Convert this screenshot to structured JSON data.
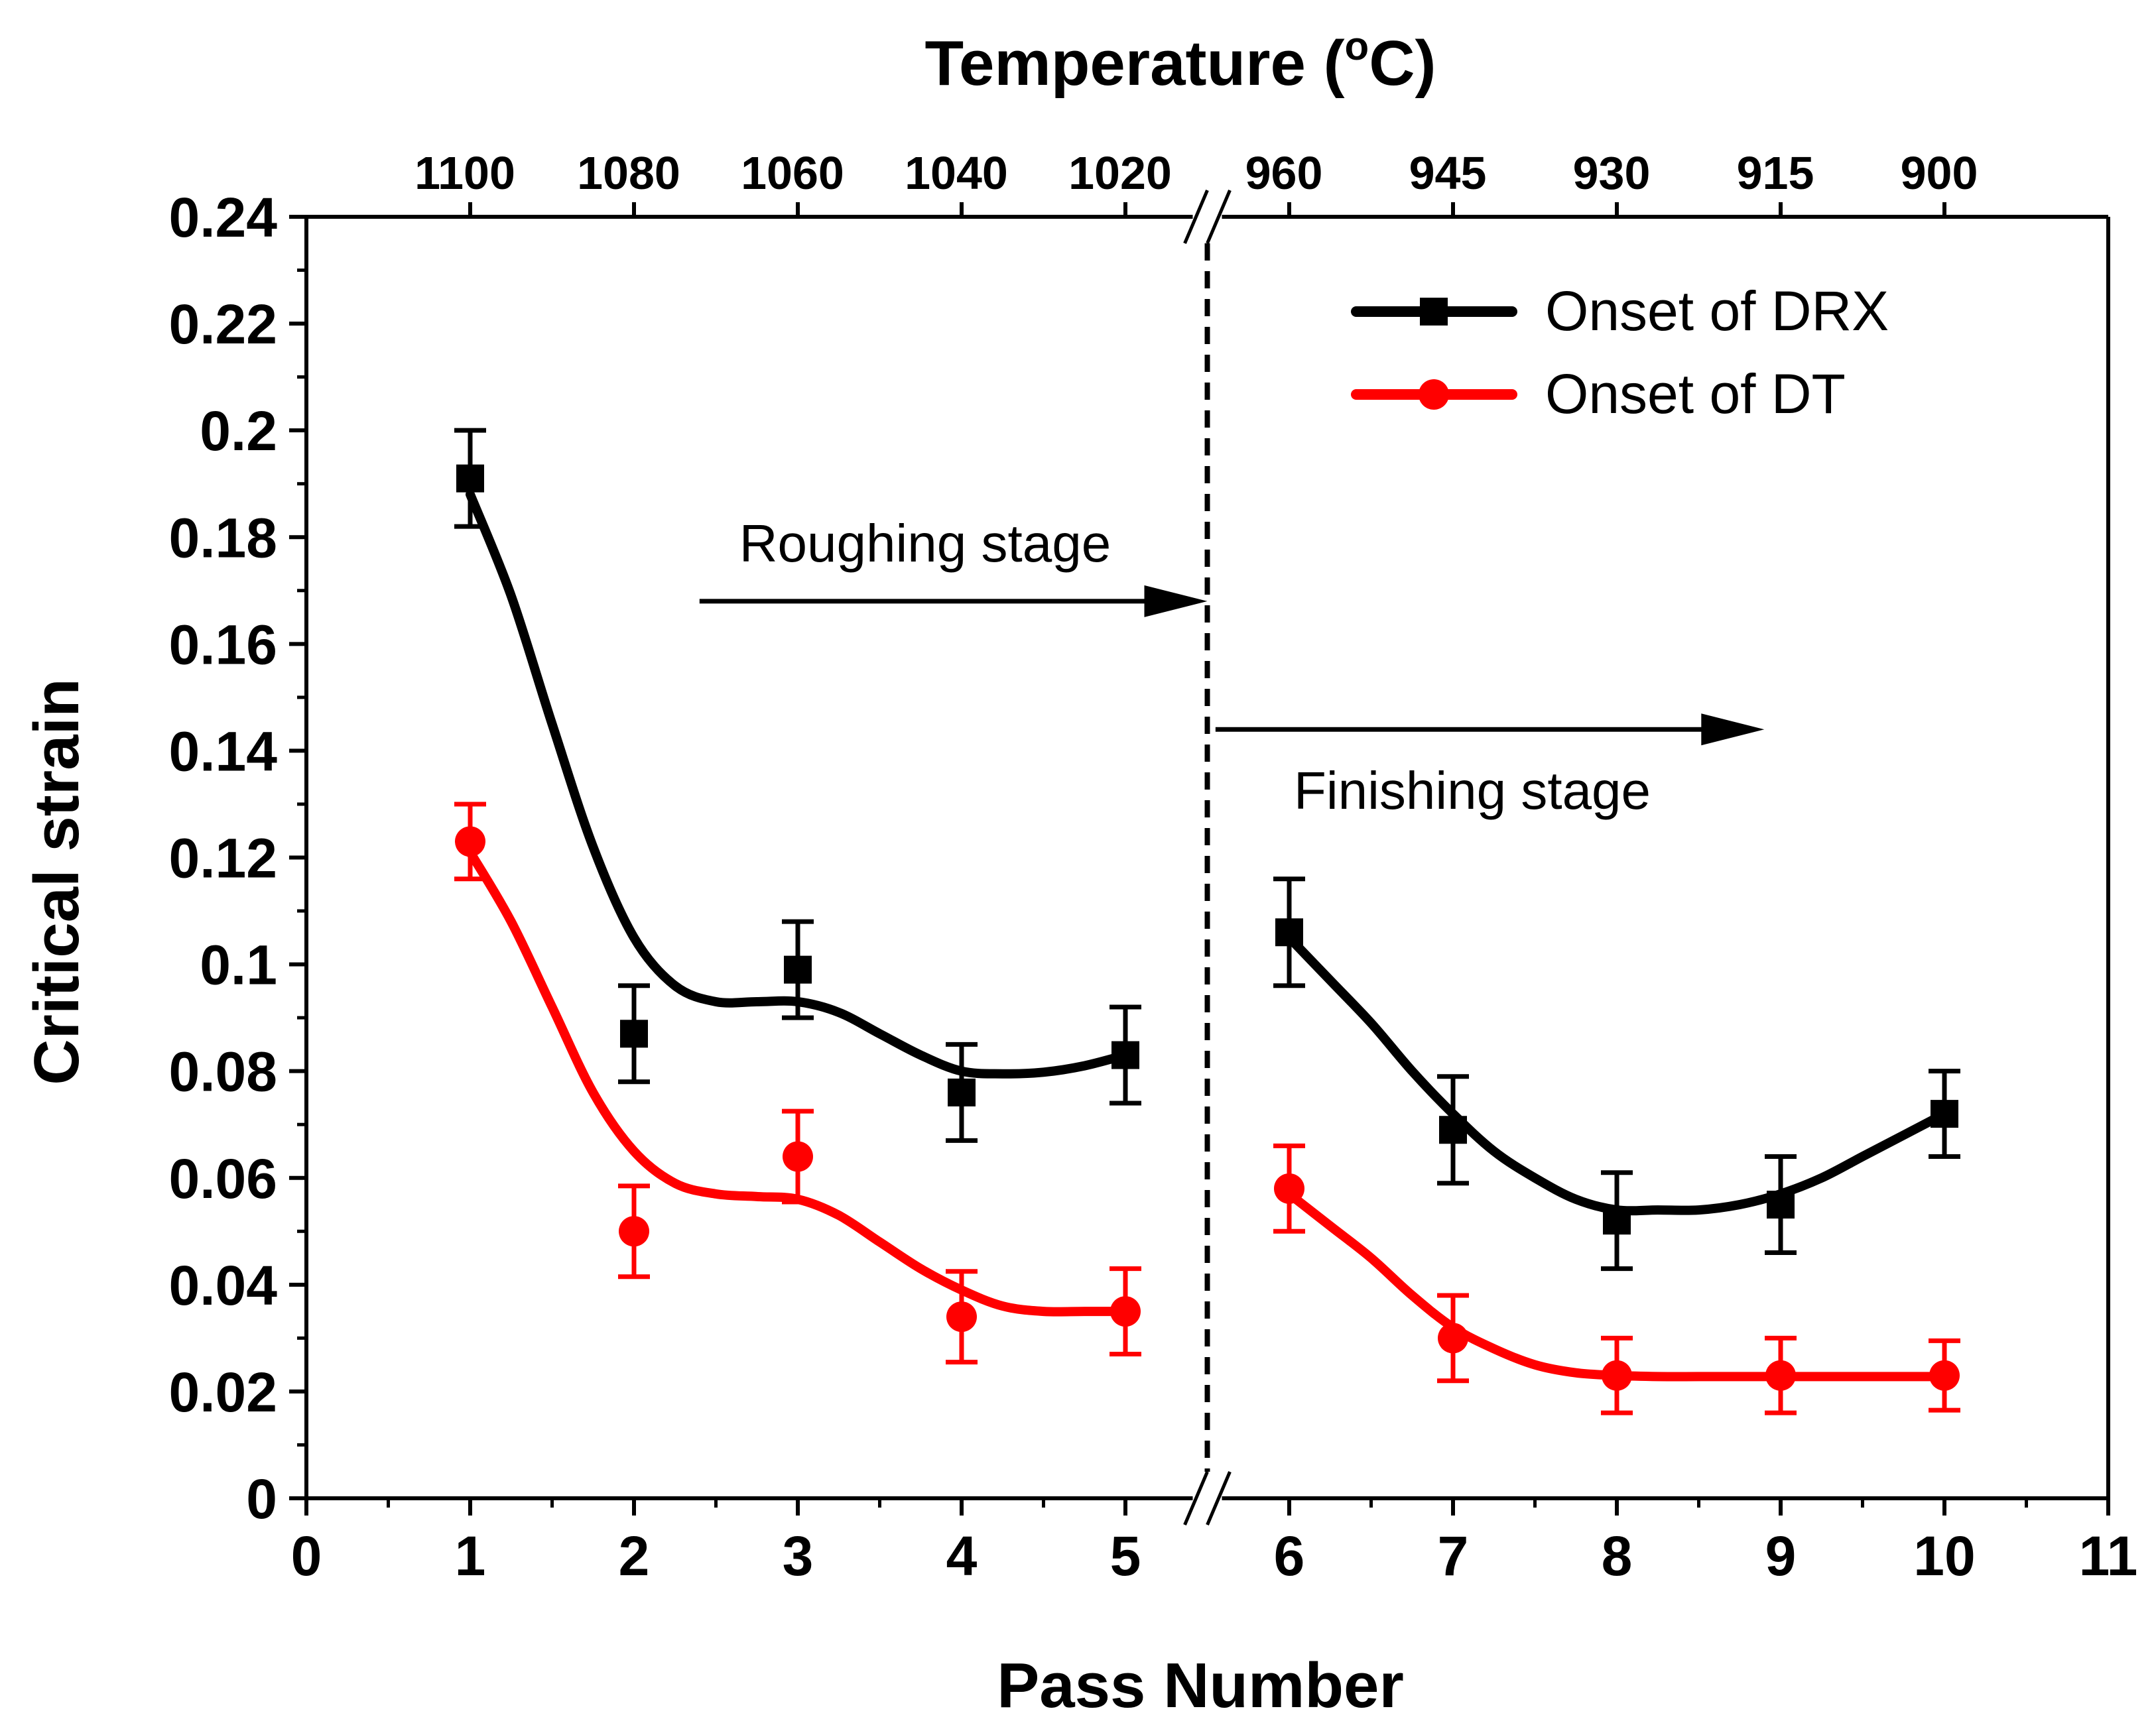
{
  "chart_data": {
    "type": "line",
    "title": "",
    "xlabel": "Pass Number",
    "ylabel": "Critical strain",
    "top_axis_label": "Temperature (",
    "top_axis_label_sup": "o",
    "top_axis_label_tail": "C)",
    "xlim": [
      0,
      11
    ],
    "ylim": [
      0,
      0.24
    ],
    "x_ticks": [
      0,
      1,
      2,
      3,
      4,
      5,
      6,
      7,
      8,
      9,
      10,
      11
    ],
    "x_tick_labels": [
      "0",
      "1",
      "2",
      "3",
      "4",
      "5",
      "6",
      "7",
      "8",
      "9",
      "10",
      "11"
    ],
    "y_ticks": [
      0,
      0.02,
      0.04,
      0.06,
      0.08,
      0.1,
      0.12,
      0.14,
      0.16,
      0.18,
      0.2,
      0.22,
      0.24
    ],
    "y_tick_labels": [
      "0",
      "0.02",
      "0.04",
      "0.06",
      "0.08",
      "0.1",
      "0.12",
      "0.14",
      "0.16",
      "0.18",
      "0.2",
      "0.22",
      "0.24"
    ],
    "top_ticks": [
      {
        "pass": 1,
        "label": "1100"
      },
      {
        "pass": 2,
        "label": "1080"
      },
      {
        "pass": 3,
        "label": "1060"
      },
      {
        "pass": 4,
        "label": "1040"
      },
      {
        "pass": 5,
        "label": "1020"
      },
      {
        "pass": 6,
        "label": "960"
      },
      {
        "pass": 7,
        "label": "945"
      },
      {
        "pass": 8,
        "label": "930"
      },
      {
        "pass": 9,
        "label": "915"
      },
      {
        "pass": 10,
        "label": "900"
      }
    ],
    "axis_break_x": 5.5,
    "series": [
      {
        "name": "Onset of DRX",
        "color": "#000000",
        "marker": "square",
        "x": [
          1,
          2,
          3,
          4,
          5,
          6,
          7,
          8,
          9,
          10
        ],
        "values": [
          0.191,
          0.087,
          0.099,
          0.076,
          0.083,
          0.106,
          0.069,
          0.052,
          0.055,
          0.072
        ],
        "errors": [
          0.009,
          0.009,
          0.009,
          0.009,
          0.009,
          0.01,
          0.01,
          0.009,
          0.009,
          0.008
        ],
        "fit_segments": [
          {
            "x": [
              1,
              1.25,
              1.5,
              1.75,
              2,
              2.25,
              2.5,
              2.75,
              3,
              3.25,
              3.5,
              3.75,
              4,
              4.25,
              4.5,
              4.75,
              5
            ],
            "y": [
              0.188,
              0.169,
              0.145,
              0.122,
              0.105,
              0.096,
              0.093,
              0.093,
              0.093,
              0.091,
              0.087,
              0.083,
              0.08,
              0.0795,
              0.0798,
              0.081,
              0.083
            ]
          },
          {
            "x": [
              6,
              6.25,
              6.5,
              6.75,
              7,
              7.25,
              7.5,
              7.75,
              8,
              8.25,
              8.5,
              8.75,
              9,
              9.25,
              9.5,
              9.75,
              10
            ],
            "y": [
              0.105,
              0.097,
              0.089,
              0.08,
              0.072,
              0.065,
              0.06,
              0.056,
              0.054,
              0.054,
              0.054,
              0.055,
              0.057,
              0.06,
              0.064,
              0.068,
              0.072
            ]
          }
        ]
      },
      {
        "name": "Onset of DT",
        "color": "#ff0000",
        "marker": "circle",
        "x": [
          1,
          2,
          3,
          4,
          5,
          6,
          7,
          8,
          9,
          10
        ],
        "values": [
          0.123,
          0.05,
          0.064,
          0.034,
          0.035,
          0.058,
          0.03,
          0.023,
          0.023,
          0.023
        ],
        "errors": [
          0.007,
          0.0085,
          0.0085,
          0.0085,
          0.008,
          0.008,
          0.008,
          0.007,
          0.007,
          0.0065
        ],
        "fit_segments": [
          {
            "x": [
              1,
              1.25,
              1.5,
              1.75,
              2,
              2.25,
              2.5,
              2.75,
              3,
              3.25,
              3.5,
              3.75,
              4,
              4.25,
              4.5,
              4.75,
              5
            ],
            "y": [
              0.121,
              0.108,
              0.092,
              0.076,
              0.065,
              0.059,
              0.057,
              0.0565,
              0.056,
              0.053,
              0.048,
              0.043,
              0.039,
              0.036,
              0.035,
              0.035,
              0.035
            ]
          },
          {
            "x": [
              6,
              6.25,
              6.5,
              6.75,
              7,
              7.25,
              7.5,
              7.75,
              8,
              8.25,
              8.5,
              8.75,
              9,
              9.5,
              10
            ],
            "y": [
              0.057,
              0.051,
              0.045,
              0.038,
              0.032,
              0.028,
              0.025,
              0.0235,
              0.023,
              0.0228,
              0.0228,
              0.0228,
              0.0228,
              0.0228,
              0.0228
            ]
          }
        ]
      }
    ],
    "annotations": [
      {
        "text": "Roughing stage",
        "arrow_from_x": 2.4,
        "arrow_to_x": 5.5,
        "arrow_y": 0.168
      },
      {
        "text": "Finishing stage",
        "arrow_from_x": 5.55,
        "arrow_to_x": 8.9,
        "arrow_y": 0.144
      }
    ],
    "legend_position": "top-right"
  }
}
